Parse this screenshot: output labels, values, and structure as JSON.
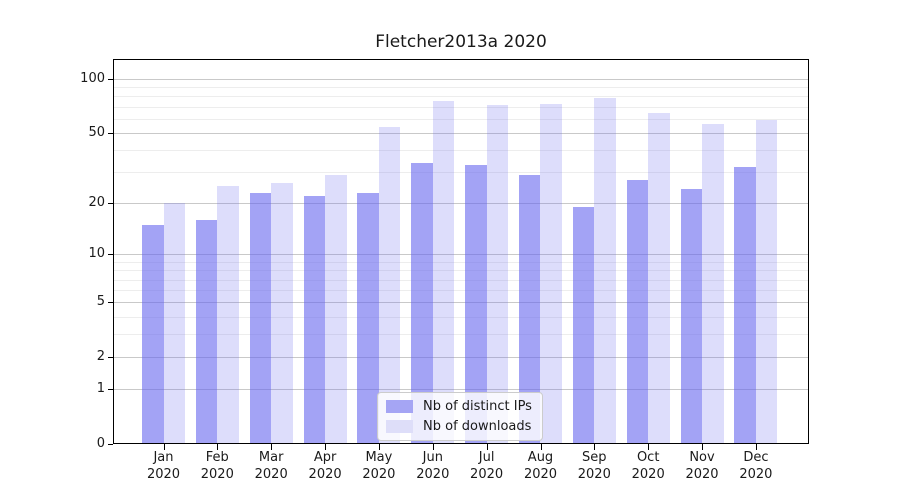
{
  "title": "Fletcher2013a 2020",
  "chart_data": {
    "type": "bar",
    "title": "Fletcher2013a 2020",
    "categories": [
      "Jan 2020",
      "Feb 2020",
      "Mar 2020",
      "Apr 2020",
      "May 2020",
      "Jun 2020",
      "Jul 2020",
      "Aug 2020",
      "Sep 2020",
      "Oct 2020",
      "Nov 2020",
      "Dec 2020"
    ],
    "series": [
      {
        "name": "Nb of distinct IPs",
        "values": [
          15,
          16,
          23,
          22,
          23,
          34,
          33,
          29,
          19,
          27,
          24,
          32
        ]
      },
      {
        "name": "Nb of downloads",
        "values": [
          20,
          25,
          26,
          29,
          54,
          75,
          72,
          73,
          78,
          65,
          56,
          59
        ]
      }
    ],
    "yscale": "log1p",
    "ylim": [
      0,
      100
    ],
    "xlabel": "",
    "ylabel": "",
    "y_major_ticks": [
      0,
      1,
      2,
      5,
      10,
      20,
      50,
      100
    ],
    "y_minor_gridlines": [
      3,
      4,
      6,
      7,
      8,
      9,
      30,
      40,
      60,
      70,
      80,
      90
    ],
    "grid": "on",
    "legend_position": "lower center"
  },
  "colors": {
    "bar_distinct_ips": "rgba(102,102,238,0.6)",
    "bar_downloads": "rgba(102,102,238,0.22)",
    "legend_patch_ips": "#a5a5f4",
    "legend_patch_downloads": "#dedef9",
    "grid_major": "#c9c9c9",
    "grid_minor": "#ededed",
    "axis": "#000000",
    "text": "#1a1a1a"
  }
}
